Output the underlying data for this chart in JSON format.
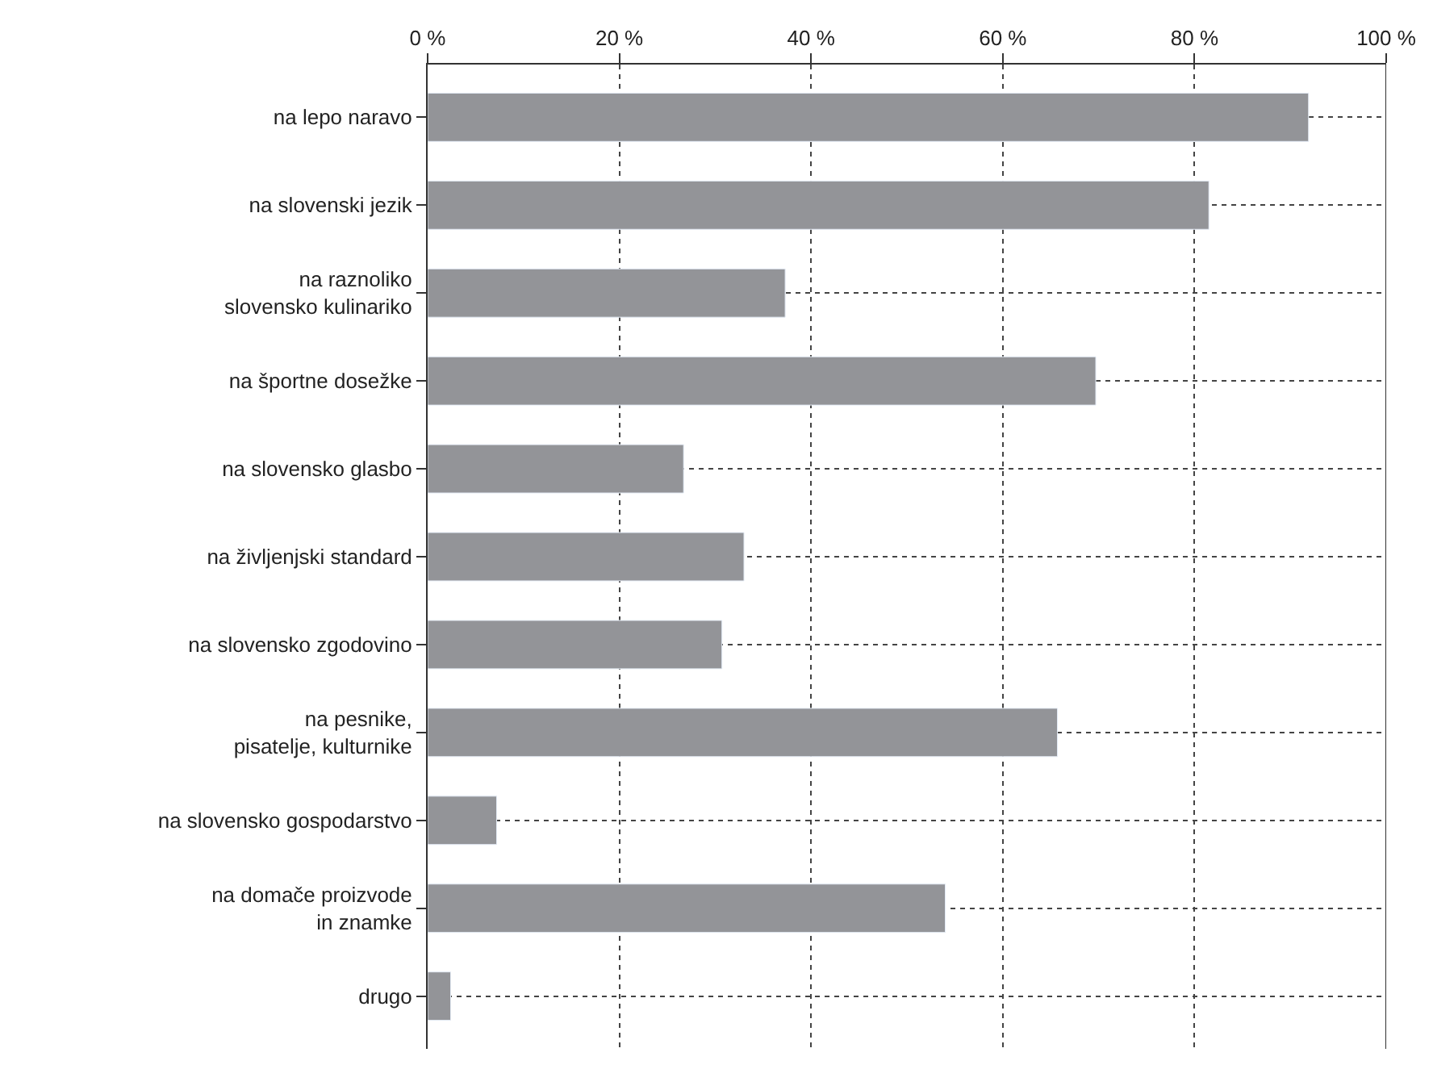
{
  "chart_data": {
    "type": "bar",
    "orientation": "horizontal",
    "categories": [
      "na lepo naravo",
      "na slovenski jezik",
      "na raznoliko\nslovensko kulinariko",
      "na športne dosežke",
      "na slovensko glasbo",
      "na življenjski standard",
      "na slovensko zgodovino",
      "na pesnike,\npisatelje, kulturnike",
      "na slovensko gospodarstvo",
      "na domače proizvode\nin znamke",
      "drugo"
    ],
    "values": [
      91.9,
      81.5,
      37.3,
      69.7,
      26.7,
      33.0,
      30.7,
      65.7,
      7.2,
      54.0,
      2.4
    ],
    "color": "#939498",
    "xlim": [
      0,
      100
    ],
    "xticks": [
      {
        "value": 0,
        "label": "0 %"
      },
      {
        "value": 20,
        "label": "20 %"
      },
      {
        "value": 40,
        "label": "40 %"
      },
      {
        "value": 60,
        "label": "60 %"
      },
      {
        "value": 80,
        "label": "80 %"
      },
      {
        "value": 100,
        "label": "100 %"
      }
    ],
    "grid": true
  }
}
